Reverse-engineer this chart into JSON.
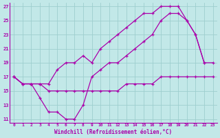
{
  "xlabel": "Windchill (Refroidissement éolien,°C)",
  "bg_color": "#c2e8e8",
  "grid_color": "#9ecece",
  "line_color": "#aa00aa",
  "xlim": [
    -0.5,
    23.5
  ],
  "ylim": [
    10.5,
    27.5
  ],
  "xticks": [
    0,
    1,
    2,
    3,
    4,
    5,
    6,
    7,
    8,
    9,
    10,
    11,
    12,
    13,
    14,
    15,
    16,
    17,
    18,
    19,
    20,
    21,
    22,
    23
  ],
  "yticks": [
    11,
    13,
    15,
    17,
    19,
    21,
    23,
    25,
    27
  ],
  "line1": [
    [
      0,
      17
    ],
    [
      1,
      16
    ],
    [
      2,
      16
    ],
    [
      3,
      16
    ],
    [
      4,
      16
    ],
    [
      5,
      18
    ],
    [
      6,
      19
    ],
    [
      7,
      19
    ],
    [
      8,
      20
    ],
    [
      9,
      19
    ],
    [
      10,
      21
    ],
    [
      11,
      22
    ],
    [
      12,
      23
    ],
    [
      13,
      24
    ],
    [
      14,
      25
    ],
    [
      15,
      26
    ],
    [
      16,
      26
    ],
    [
      17,
      27
    ],
    [
      18,
      27
    ],
    [
      19,
      27
    ],
    [
      20,
      25
    ],
    [
      21,
      23
    ],
    [
      22,
      19
    ],
    [
      23,
      19
    ]
  ],
  "line2": [
    [
      0,
      17
    ],
    [
      1,
      16
    ],
    [
      2,
      16
    ],
    [
      3,
      14
    ],
    [
      4,
      12
    ],
    [
      5,
      12
    ],
    [
      6,
      11
    ],
    [
      7,
      11
    ],
    [
      8,
      13
    ],
    [
      9,
      17
    ],
    [
      10,
      18
    ],
    [
      11,
      19
    ],
    [
      12,
      19
    ],
    [
      13,
      20
    ],
    [
      14,
      21
    ],
    [
      15,
      22
    ],
    [
      16,
      23
    ],
    [
      17,
      25
    ],
    [
      18,
      26
    ],
    [
      19,
      26
    ],
    [
      20,
      25
    ],
    [
      21,
      23
    ],
    [
      22,
      19
    ]
  ],
  "line3": [
    [
      0,
      17
    ],
    [
      1,
      16
    ],
    [
      2,
      16
    ],
    [
      3,
      16
    ],
    [
      4,
      15
    ],
    [
      5,
      15
    ],
    [
      6,
      15
    ],
    [
      7,
      15
    ],
    [
      8,
      15
    ],
    [
      9,
      15
    ],
    [
      10,
      15
    ],
    [
      11,
      15
    ],
    [
      12,
      15
    ],
    [
      13,
      16
    ],
    [
      14,
      16
    ],
    [
      15,
      16
    ],
    [
      16,
      16
    ],
    [
      17,
      17
    ],
    [
      18,
      17
    ],
    [
      19,
      17
    ],
    [
      20,
      17
    ],
    [
      21,
      17
    ],
    [
      22,
      17
    ],
    [
      23,
      17
    ]
  ]
}
